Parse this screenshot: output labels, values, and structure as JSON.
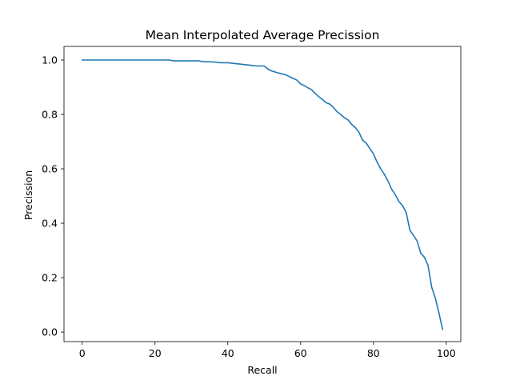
{
  "chart_data": {
    "type": "line",
    "title": "Mean Interpolated Average Precission",
    "xlabel": "Recall",
    "ylabel": "Precission",
    "xlim": [
      -5,
      104
    ],
    "ylim": [
      -0.035,
      1.05
    ],
    "xticks": [
      0,
      20,
      40,
      60,
      80,
      100
    ],
    "yticks": [
      0.0,
      0.2,
      0.4,
      0.6,
      0.8,
      1.0
    ],
    "xtick_labels": [
      "0",
      "20",
      "40",
      "60",
      "80",
      "100"
    ],
    "ytick_labels": [
      "0.0",
      "0.2",
      "0.4",
      "0.6",
      "0.8",
      "1.0"
    ],
    "grid": false,
    "series": [
      {
        "color": "#1f77b4",
        "x": [
          0,
          5,
          10,
          15,
          20,
          24,
          25,
          28,
          32,
          33,
          36,
          38,
          40,
          42,
          44,
          46,
          48,
          50,
          51,
          52,
          54,
          56,
          57,
          58,
          59,
          60,
          61,
          62,
          63,
          64,
          65,
          66,
          67,
          68,
          69,
          70,
          71,
          72,
          73,
          74,
          75,
          76,
          77,
          78,
          79,
          80,
          81,
          82,
          83,
          84,
          85,
          86,
          87,
          88,
          89,
          90,
          91,
          92,
          93,
          94,
          95,
          96,
          97,
          98,
          99
        ],
        "y": [
          1.0,
          1.0,
          1.0,
          1.0,
          1.0,
          1.0,
          0.997,
          0.997,
          0.997,
          0.994,
          0.993,
          0.99,
          0.99,
          0.987,
          0.984,
          0.981,
          0.978,
          0.978,
          0.967,
          0.96,
          0.952,
          0.945,
          0.938,
          0.932,
          0.926,
          0.912,
          0.906,
          0.898,
          0.891,
          0.877,
          0.865,
          0.855,
          0.843,
          0.838,
          0.826,
          0.81,
          0.8,
          0.788,
          0.78,
          0.764,
          0.752,
          0.735,
          0.706,
          0.695,
          0.675,
          0.655,
          0.625,
          0.6,
          0.58,
          0.555,
          0.525,
          0.505,
          0.48,
          0.465,
          0.44,
          0.375,
          0.355,
          0.335,
          0.29,
          0.275,
          0.245,
          0.165,
          0.125,
          0.07,
          0.01
        ]
      }
    ]
  }
}
